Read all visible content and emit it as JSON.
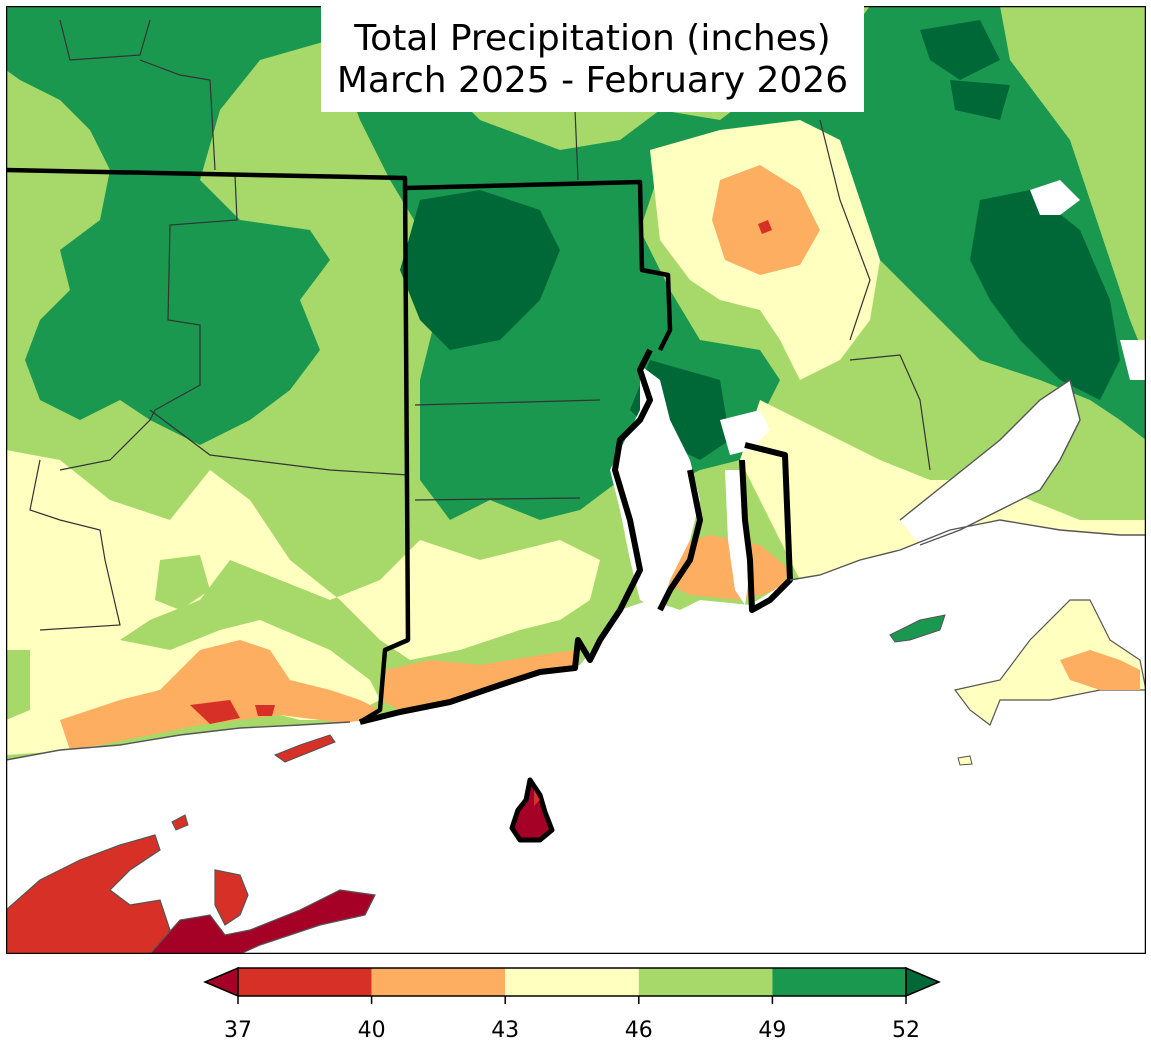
{
  "title": {
    "line1": "Total Precipitation (inches)",
    "line2": "March 2025 - February 2026"
  },
  "colors": {
    "water": "#ffffff",
    "land_default": "#a6d96a",
    "state_outline": "#000000",
    "bins": [
      "#a50026",
      "#d73027",
      "#fdae61",
      "#ffffbf",
      "#a6d96a",
      "#1a9850",
      "#006837"
    ]
  },
  "colorbar": {
    "ticks": [
      "37",
      "40",
      "43",
      "46",
      "49",
      "52"
    ],
    "bins": [
      {
        "min": 37,
        "max": 40,
        "color": "#d73027"
      },
      {
        "min": 40,
        "max": 43,
        "color": "#fdae61"
      },
      {
        "min": 43,
        "max": 46,
        "color": "#ffffbf"
      },
      {
        "min": 46,
        "max": 49,
        "color": "#a6d96a"
      },
      {
        "min": 49,
        "max": 52,
        "color": "#1a9850"
      }
    ],
    "under_color": "#a50026",
    "over_color": "#006837",
    "extend": "both"
  }
}
